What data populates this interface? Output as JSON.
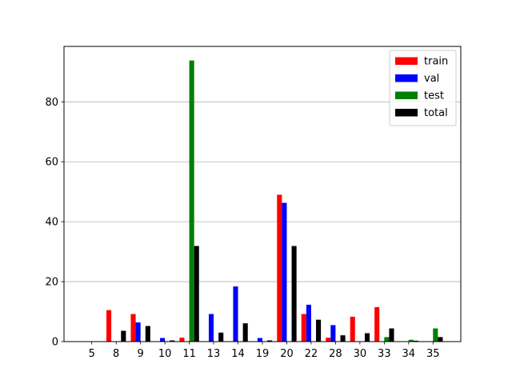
{
  "chart_data": {
    "type": "bar",
    "categories": [
      "5",
      "8",
      "9",
      "10",
      "11",
      "13",
      "14",
      "19",
      "20",
      "22",
      "28",
      "30",
      "33",
      "34",
      "35"
    ],
    "series": [
      {
        "name": "train",
        "color": "#ff0000",
        "values": [
          0,
          10.5,
          9.2,
          0,
          1.3,
          0,
          0,
          0,
          49.0,
          9.2,
          1.3,
          8.3,
          11.5,
          0,
          0
        ]
      },
      {
        "name": "val",
        "color": "#0000ff",
        "values": [
          0,
          0,
          6.4,
          1.2,
          0,
          9.2,
          18.4,
          1.2,
          46.3,
          12.3,
          5.5,
          0,
          0,
          0,
          0
        ]
      },
      {
        "name": "test",
        "color": "#008000",
        "values": [
          0,
          0,
          0,
          0,
          93.8,
          0,
          0,
          0,
          0,
          0,
          0,
          0,
          1.5,
          0.6,
          4.4
        ]
      },
      {
        "name": "total",
        "color": "#000000",
        "values": [
          0,
          3.6,
          5.2,
          0.4,
          31.9,
          3.0,
          6.1,
          0.4,
          31.9,
          7.3,
          2.1,
          2.8,
          4.4,
          0.3,
          1.5
        ]
      }
    ],
    "title": "",
    "xlabel": "",
    "ylabel": "",
    "ylim": [
      0,
      98.5
    ],
    "yticks": [
      0,
      20,
      40,
      60,
      80
    ],
    "grid": "y",
    "legend": "top-right"
  }
}
